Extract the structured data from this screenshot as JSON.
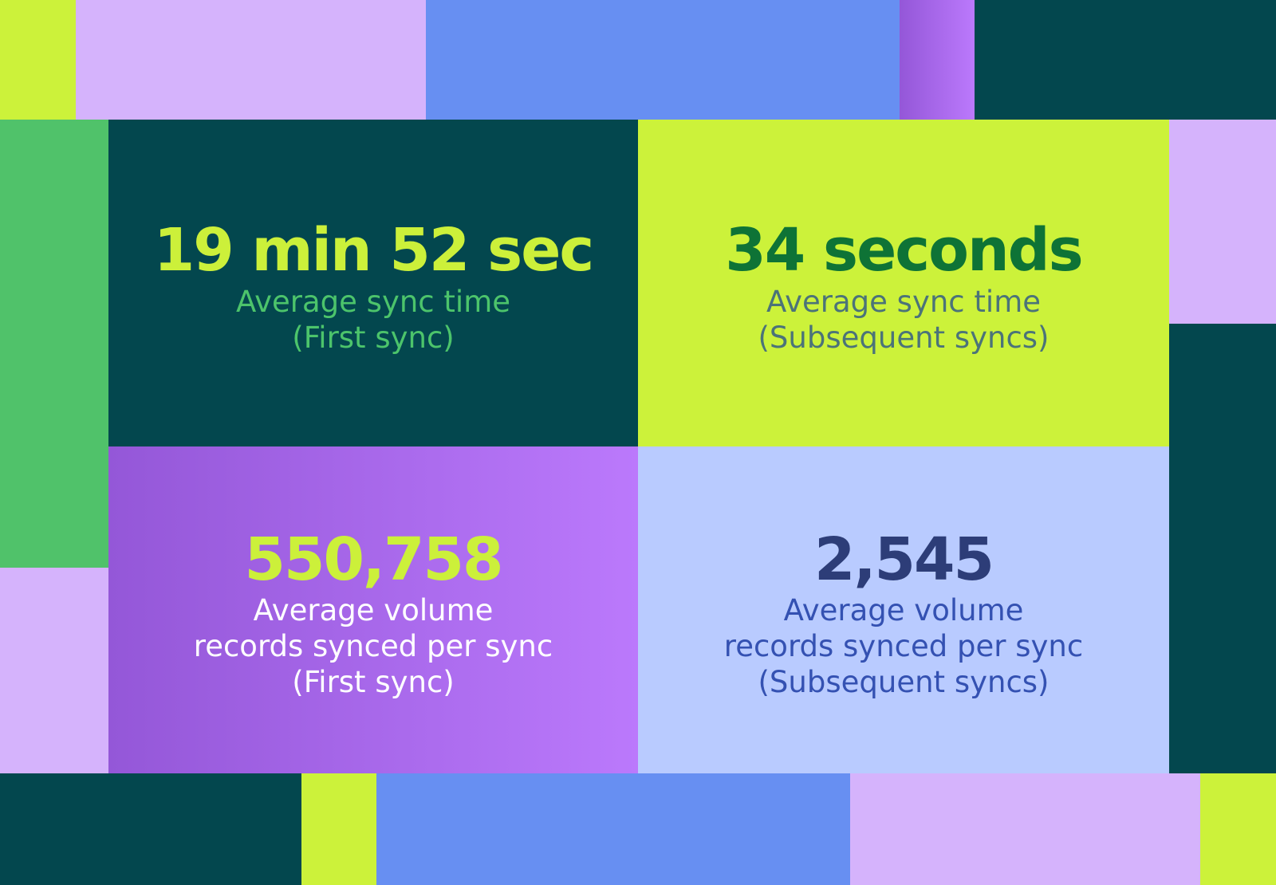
{
  "colors": {
    "teal": "#03474e",
    "lime": "#ccf23a",
    "lavender": "#d5b3fc",
    "blue": "#678ff2",
    "green": "#50c26a",
    "purple_start": "#9457d8",
    "purple_end": "#bb79fc",
    "light_blue": "#b9cbff"
  },
  "stats": [
    {
      "value": "19 min 52 sec",
      "label": "Average sync time\n(First sync)"
    },
    {
      "value": "34 seconds",
      "label": "Average sync time\n(Subsequent syncs)"
    },
    {
      "value": "550,758",
      "label": "Average volume\nrecords synced per sync\n(First sync)"
    },
    {
      "value": "2,545",
      "label": "Average volume\nrecords synced per sync\n(Subsequent syncs)"
    }
  ]
}
